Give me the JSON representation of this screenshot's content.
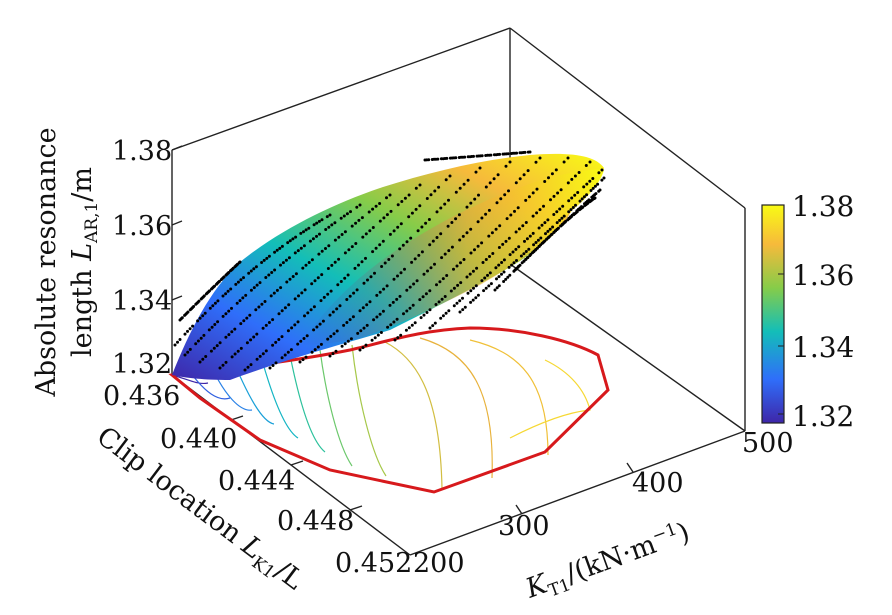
{
  "chart_data": {
    "type": "surface3d",
    "title": "",
    "z_axis": {
      "label_line1": "Absolute resonance",
      "label_line2_prefix": "length ",
      "label_var": "L",
      "label_sub": "AR,1",
      "label_unit": "/m",
      "ticks": [
        "1.32",
        "1.34",
        "1.36",
        "1.38"
      ],
      "range": [
        1.32,
        1.38
      ]
    },
    "x_axis": {
      "label_prefix": "Clip location ",
      "label_var": "L",
      "label_sub": "K1",
      "label_suffix": "/L",
      "ticks": [
        "0.436",
        "0.440",
        "0.444",
        "0.448",
        "0.452"
      ],
      "range": [
        0.436,
        0.452
      ]
    },
    "y_axis": {
      "label_var": "K",
      "label_sub": "T1",
      "label_unit_a": "/(kN·m",
      "label_sup": "−1",
      "label_unit_b": ")",
      "ticks": [
        "200",
        "300",
        "400",
        "500"
      ],
      "range": [
        200,
        500
      ]
    },
    "colorbar": {
      "ticks": [
        "1.32",
        "1.34",
        "1.36",
        "1.38"
      ],
      "range": [
        1.32,
        1.38
      ],
      "colormap": [
        "#3e26a8",
        "#2f6efa",
        "#13beb8",
        "#86cc49",
        "#f6ba3b",
        "#f9fb14"
      ]
    },
    "surface_value_range": [
      1.32,
      1.38
    ],
    "feasible_region_color": "#d7191c",
    "scatter_color": "#000000",
    "grid": false
  }
}
